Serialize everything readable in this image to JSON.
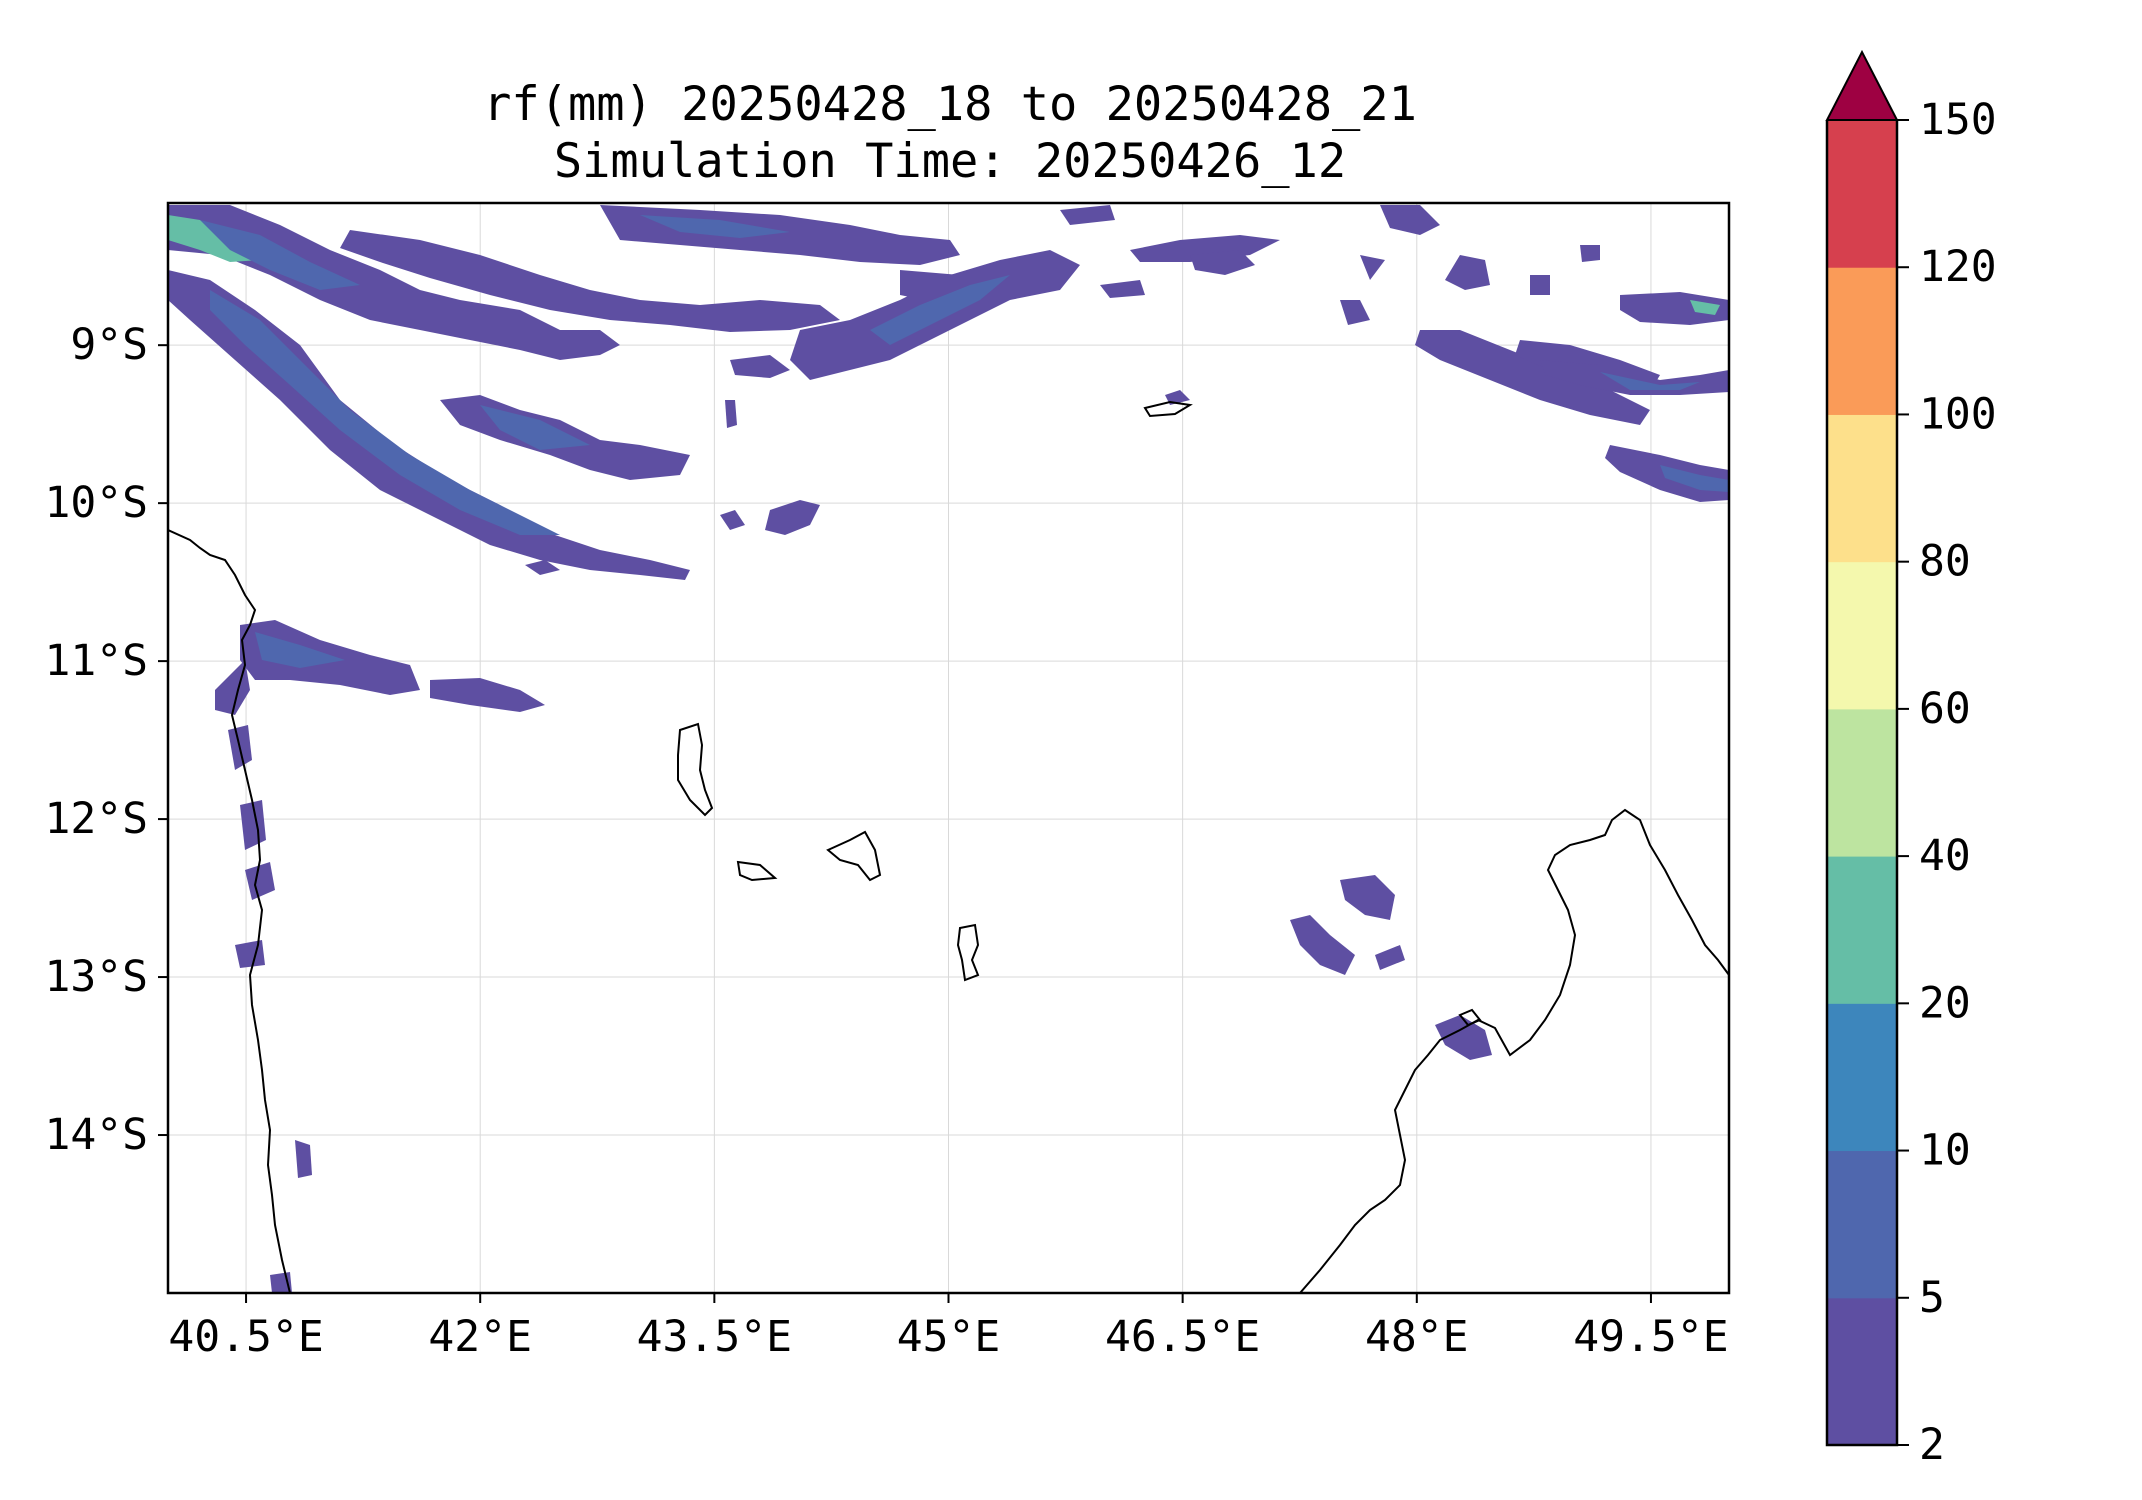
{
  "title": {
    "line1": "rf(mm) 20250428_18 to 20250428_21",
    "line2": "Simulation Time: 20250426_12"
  },
  "map": {
    "lon_range": [
      40.0,
      50.0
    ],
    "lat_range": [
      -15.0,
      -8.1
    ],
    "x_ticks": [
      {
        "value": 40.5,
        "label": "40.5°E"
      },
      {
        "value": 42.0,
        "label": "42°E"
      },
      {
        "value": 43.5,
        "label": "43.5°E"
      },
      {
        "value": 45.0,
        "label": "45°E"
      },
      {
        "value": 46.5,
        "label": "46.5°E"
      },
      {
        "value": 48.0,
        "label": "48°E"
      },
      {
        "value": 49.5,
        "label": "49.5°E"
      }
    ],
    "y_ticks": [
      {
        "value": -9,
        "label": "9°S"
      },
      {
        "value": -10,
        "label": "10°S"
      },
      {
        "value": -11,
        "label": "11°S"
      },
      {
        "value": -12,
        "label": "12°S"
      },
      {
        "value": -13,
        "label": "13°S"
      },
      {
        "value": -14,
        "label": "14°S"
      }
    ],
    "grid": true
  },
  "colorbar": {
    "levels": [
      "2",
      "5",
      "10",
      "20",
      "40",
      "60",
      "80",
      "100",
      "120",
      "150"
    ],
    "colors": [
      "#5e4fa2",
      "#4f67ae",
      "#3d86bc",
      "#65bea6",
      "#bde4a0",
      "#f4f8ad",
      "#fde08b",
      "#fa9b58",
      "#d6404e"
    ],
    "extend_color": "#9e0142",
    "extend": "max"
  },
  "colors": {
    "rain_2_5": "#5e4fa2",
    "rain_5_10": "#4f67ae",
    "rain_10_20": "#3d86bc",
    "rain_20_40": "#65bea6",
    "coastline": "#000000"
  }
}
